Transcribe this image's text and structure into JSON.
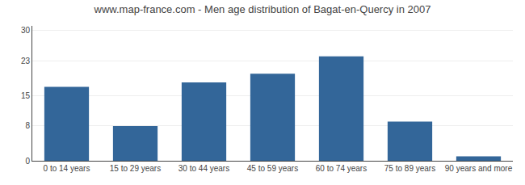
{
  "chart_data": {
    "type": "bar",
    "title": "www.map-france.com - Men age distribution of Bagat-en-Quercy in 2007",
    "categories": [
      "0 to 14 years",
      "15 to 29 years",
      "30 to 44 years",
      "45 to 59 years",
      "60 to 74 years",
      "75 to 89 years",
      "90 years and more"
    ],
    "values": [
      17,
      8,
      18,
      20,
      24,
      9,
      1
    ],
    "color": "#336699",
    "ylim": [
      0,
      31
    ],
    "yticks": [
      0,
      8,
      15,
      23,
      30
    ],
    "grid": true
  }
}
